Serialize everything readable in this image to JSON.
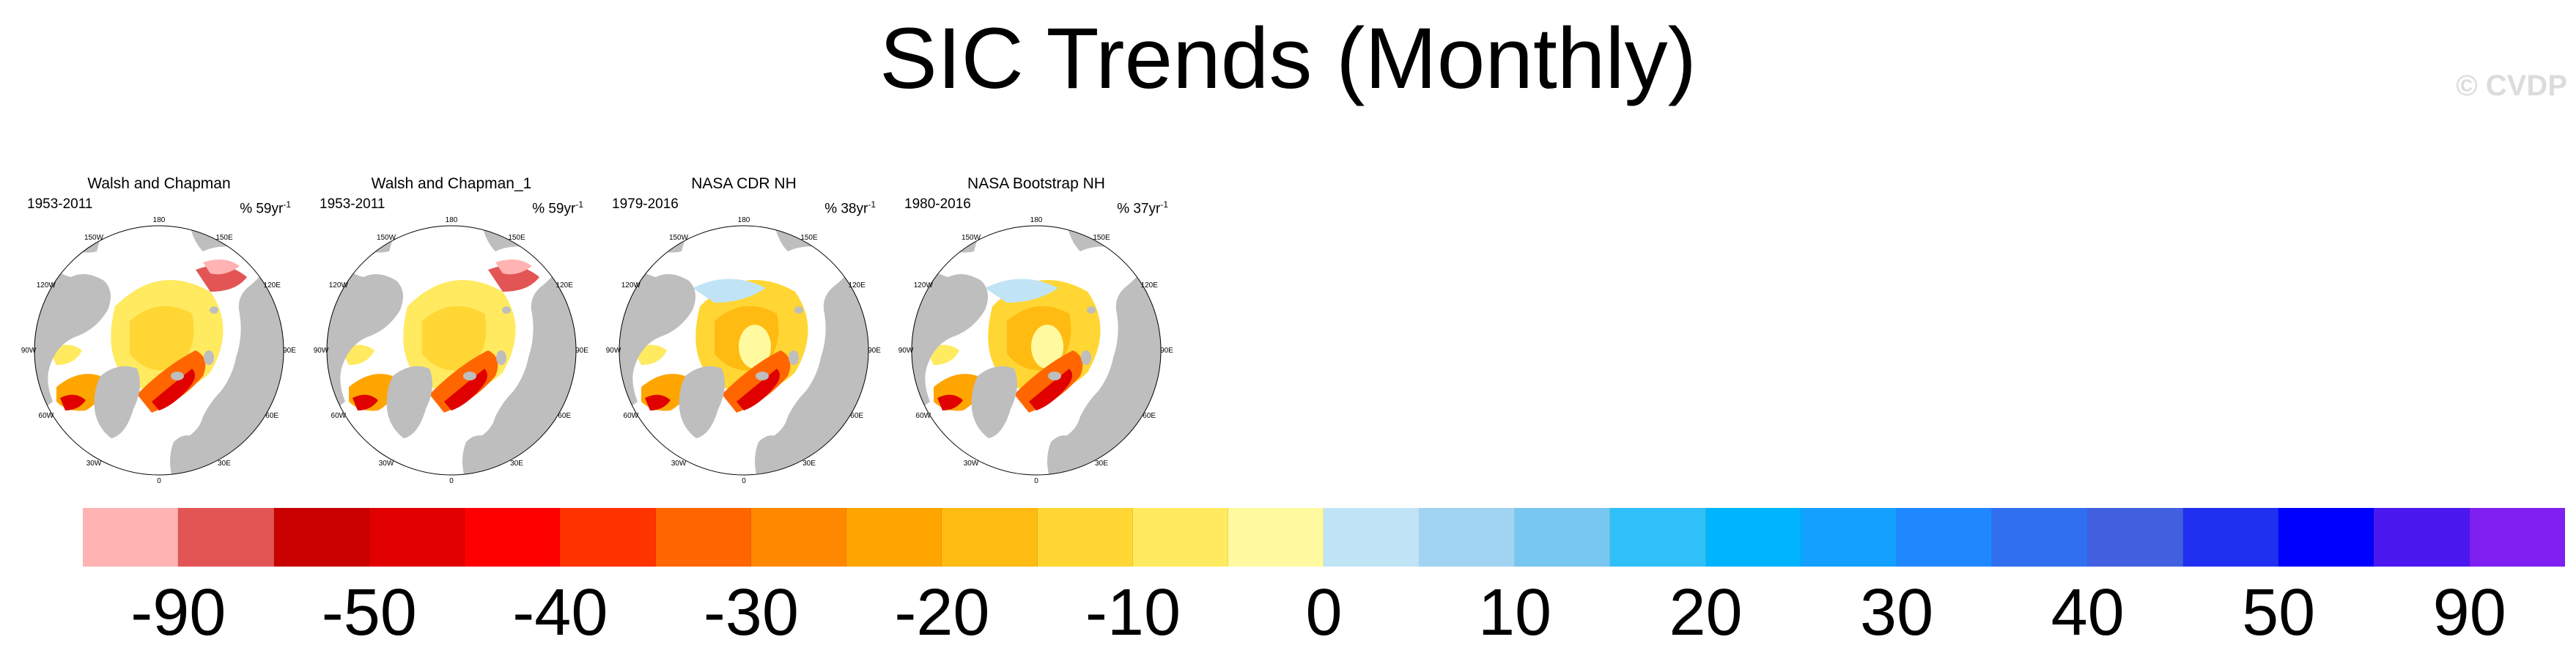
{
  "figure": {
    "title": "SIC Trends (Monthly)",
    "watermark": "© CVDP"
  },
  "panels": [
    {
      "title": "Walsh and Chapman",
      "years": "1953-2011",
      "stat": "% 59yr",
      "stat_sup": "-1",
      "pattern": "wc"
    },
    {
      "title": "Walsh and Chapman_1",
      "years": "1953-2011",
      "stat": "% 59yr",
      "stat_sup": "-1",
      "pattern": "wc"
    },
    {
      "title": "NASA CDR NH",
      "years": "1979-2016",
      "stat": "% 38yr",
      "stat_sup": "-1",
      "pattern": "sat"
    },
    {
      "title": "NASA Bootstrap NH",
      "years": "1980-2016",
      "stat": "% 37yr",
      "stat_sup": "-1",
      "pattern": "sat"
    }
  ],
  "longitude_labels": [
    "180",
    "150W",
    "150E",
    "120W",
    "120E",
    "90W",
    "90E",
    "60W",
    "60E",
    "30W",
    "30E",
    "0"
  ],
  "chart_data": {
    "type": "heatmap",
    "colorbar": {
      "colors": [
        "#ffb3b3",
        "#e35555",
        "#c80000",
        "#e00000",
        "#ff0000",
        "#ff3300",
        "#ff6600",
        "#ff8800",
        "#ffa500",
        "#ffbb11",
        "#ffd633",
        "#ffea60",
        "#fffaa0",
        "#c0e4f6",
        "#a0d4f2",
        "#78c6f2",
        "#30c0f8",
        "#00b4ff",
        "#13a0ff",
        "#2088ff",
        "#3070f0",
        "#4060e0",
        "#2030f0",
        "#0000ff",
        "#4c18f0",
        "#8020f0"
      ],
      "tick_labels": [
        "-90",
        "-50",
        "-40",
        "-30",
        "-20",
        "-10",
        "0",
        "10",
        "20",
        "30",
        "40",
        "50",
        "90"
      ],
      "tick_boundaries": [
        1,
        3,
        5,
        7,
        9,
        11,
        13,
        15,
        17,
        19,
        21,
        23,
        25
      ]
    },
    "land_color": "#bebebe"
  }
}
